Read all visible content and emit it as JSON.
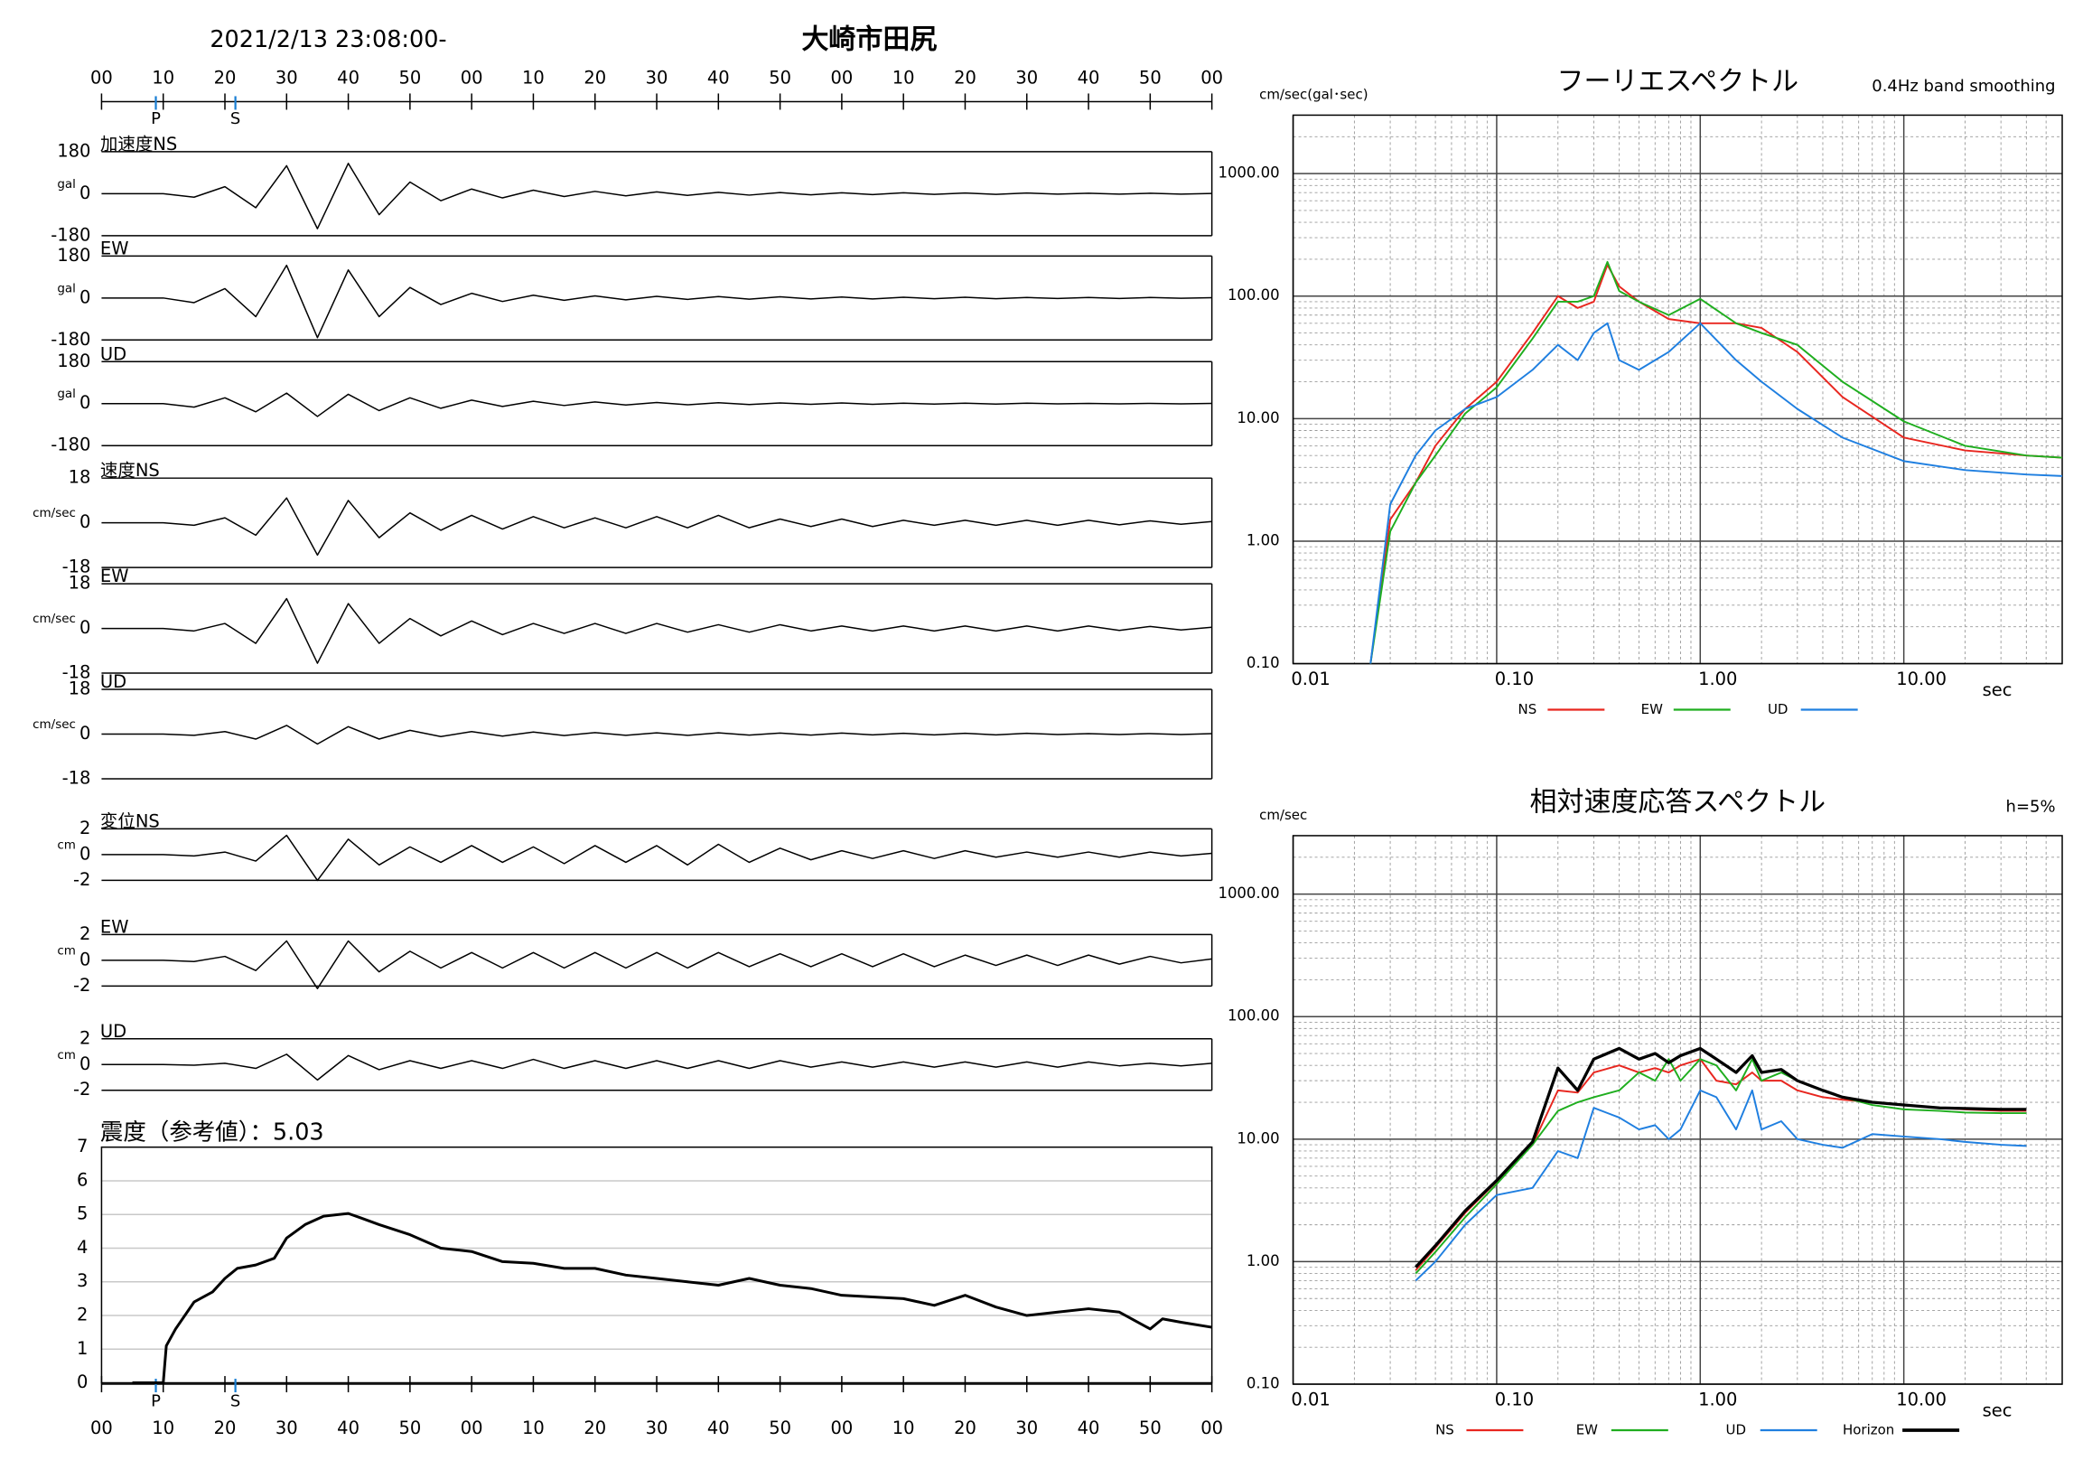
{
  "chart_data": [
    {
      "type": "line",
      "title": "大崎市田尻",
      "subtitle": "2021/2/13 23:08:00-",
      "xlim": [
        0,
        180
      ],
      "xticks": [
        {
          "value": 0,
          "label": "00"
        },
        {
          "value": 10,
          "label": "10"
        },
        {
          "value": 20,
          "label": "20"
        },
        {
          "value": 30,
          "label": "30"
        },
        {
          "value": 40,
          "label": "40"
        },
        {
          "value": 50,
          "label": "50"
        },
        {
          "value": 60,
          "label": "00"
        },
        {
          "value": 70,
          "label": "10"
        },
        {
          "value": 80,
          "label": "20"
        },
        {
          "value": 90,
          "label": "30"
        },
        {
          "value": 100,
          "label": "40"
        },
        {
          "value": 110,
          "label": "50"
        },
        {
          "value": 120,
          "label": "00"
        },
        {
          "value": 130,
          "label": "10"
        },
        {
          "value": 140,
          "label": "20"
        },
        {
          "value": 150,
          "label": "30"
        },
        {
          "value": 160,
          "label": "40"
        },
        {
          "value": 170,
          "label": "50"
        },
        {
          "value": 180,
          "label": "00"
        }
      ],
      "markers": [
        {
          "label": "P",
          "x": 8.8
        },
        {
          "label": "S",
          "x": 21.7
        }
      ],
      "x": [
        0,
        5,
        10,
        15,
        20,
        25,
        30,
        35,
        40,
        45,
        50,
        55,
        60,
        65,
        70,
        75,
        80,
        85,
        90,
        95,
        100,
        105,
        110,
        115,
        120,
        125,
        130,
        135,
        140,
        145,
        150,
        155,
        160,
        165,
        170,
        175,
        180
      ],
      "panels": [
        {
          "label": "加速度NS",
          "unit": "gal",
          "ylim": [
            -180,
            180
          ],
          "yticks": [
            180,
            0,
            -180
          ],
          "color": "#000000",
          "values": [
            0,
            0,
            0,
            -15,
            30,
            -60,
            120,
            -150,
            130,
            -90,
            50,
            -30,
            20,
            -18,
            15,
            -12,
            10,
            -9,
            8,
            -7,
            6,
            -6,
            5,
            -5,
            4,
            -4,
            4,
            -3,
            3,
            -3,
            3,
            -2,
            2,
            -2,
            2,
            -2,
            1
          ]
        },
        {
          "label": "EW",
          "unit": "gal",
          "ylim": [
            -180,
            180
          ],
          "yticks": [
            180,
            0,
            -180
          ],
          "color": "#000000",
          "values": [
            0,
            0,
            0,
            -20,
            40,
            -80,
            140,
            -170,
            120,
            -80,
            45,
            -28,
            20,
            -15,
            12,
            -10,
            9,
            -8,
            7,
            -6,
            6,
            -5,
            5,
            -4,
            4,
            -4,
            3,
            -3,
            3,
            -3,
            2,
            -2,
            2,
            -2,
            2,
            -1,
            1
          ]
        },
        {
          "label": "UD",
          "unit": "gal",
          "ylim": [
            -180,
            180
          ],
          "yticks": [
            180,
            0,
            -180
          ],
          "color": "#000000",
          "values": [
            0,
            0,
            0,
            -15,
            25,
            -35,
            45,
            -55,
            40,
            -30,
            25,
            -20,
            15,
            -12,
            10,
            -8,
            7,
            -6,
            5,
            -5,
            4,
            -4,
            3,
            -3,
            3,
            -3,
            2,
            -2,
            2,
            -2,
            2,
            -1,
            1,
            -1,
            1,
            -1,
            1
          ]
        },
        {
          "label": "速度NS",
          "unit": "cm/sec",
          "ylim": [
            -18,
            18
          ],
          "yticks": [
            18,
            0,
            -18
          ],
          "color": "#000000",
          "values": [
            0,
            0,
            0,
            -1,
            2,
            -5,
            10,
            -13,
            9,
            -6,
            4,
            -3,
            3,
            -2.5,
            2.5,
            -2,
            2,
            -2,
            2.5,
            -2,
            3,
            -2,
            1.5,
            -1.5,
            1.5,
            -1.5,
            1,
            -1,
            1,
            -1,
            1,
            -1,
            1,
            -0.8,
            0.8,
            -0.6,
            0.5
          ]
        },
        {
          "label": "EW",
          "unit": "cm/sec",
          "ylim": [
            -18,
            18
          ],
          "yticks": [
            18,
            0,
            -18
          ],
          "color": "#000000",
          "values": [
            0,
            0,
            0,
            -1,
            2,
            -6,
            12,
            -14,
            10,
            -6,
            4,
            -3,
            3,
            -2.5,
            2,
            -2,
            2,
            -2,
            2,
            -1.5,
            1.5,
            -1.5,
            1.5,
            -1,
            1,
            -1,
            1,
            -1,
            1,
            -1,
            1,
            -1,
            1,
            -0.8,
            0.8,
            -0.6,
            0.5
          ]
        },
        {
          "label": "UD",
          "unit": "cm/sec",
          "ylim": [
            -18,
            18
          ],
          "yticks": [
            18,
            0,
            -18
          ],
          "color": "#000000",
          "values": [
            0,
            0,
            0,
            -0.5,
            1,
            -2,
            3.5,
            -4,
            3,
            -2,
            1.5,
            -1,
            1,
            -0.8,
            0.8,
            -0.6,
            0.6,
            -0.5,
            0.5,
            -0.5,
            0.5,
            -0.4,
            0.4,
            -0.4,
            0.4,
            -0.3,
            0.3,
            -0.3,
            0.3,
            -0.3,
            0.3,
            -0.2,
            0.2,
            -0.2,
            0.2,
            -0.2,
            0.2
          ]
        },
        {
          "label": "変位NS",
          "unit": "cm",
          "ylim": [
            -2,
            2
          ],
          "yticks": [
            2,
            0,
            -2
          ],
          "color": "#000000",
          "values": [
            0,
            0,
            0,
            -0.1,
            0.2,
            -0.5,
            1.5,
            -2,
            1.2,
            -0.8,
            0.6,
            -0.6,
            0.7,
            -0.6,
            0.6,
            -0.7,
            0.7,
            -0.6,
            0.7,
            -0.8,
            0.8,
            -0.6,
            0.5,
            -0.4,
            0.3,
            -0.3,
            0.3,
            -0.3,
            0.3,
            -0.2,
            0.2,
            -0.2,
            0.2,
            -0.2,
            0.2,
            -0.1,
            0.1
          ]
        },
        {
          "label": "EW",
          "unit": "cm",
          "ylim": [
            -2,
            2
          ],
          "yticks": [
            2,
            0,
            -2
          ],
          "color": "#000000",
          "values": [
            0,
            0,
            0,
            -0.1,
            0.3,
            -0.8,
            1.5,
            -2.2,
            1.5,
            -0.9,
            0.7,
            -0.6,
            0.6,
            -0.6,
            0.6,
            -0.6,
            0.6,
            -0.6,
            0.6,
            -0.6,
            0.6,
            -0.5,
            0.5,
            -0.5,
            0.5,
            -0.5,
            0.5,
            -0.5,
            0.4,
            -0.4,
            0.4,
            -0.4,
            0.4,
            -0.3,
            0.3,
            -0.2,
            0.1
          ]
        },
        {
          "label": "UD",
          "unit": "cm",
          "ylim": [
            -2,
            2
          ],
          "yticks": [
            2,
            0,
            -2
          ],
          "color": "#000000",
          "values": [
            0,
            0,
            0,
            -0.05,
            0.1,
            -0.3,
            0.8,
            -1.2,
            0.7,
            -0.4,
            0.3,
            -0.3,
            0.3,
            -0.3,
            0.4,
            -0.3,
            0.3,
            -0.3,
            0.3,
            -0.3,
            0.3,
            -0.3,
            0.3,
            -0.2,
            0.2,
            -0.2,
            0.2,
            -0.2,
            0.2,
            -0.2,
            0.2,
            -0.2,
            0.2,
            -0.1,
            0.1,
            -0.1,
            0.1
          ]
        }
      ]
    },
    {
      "type": "line",
      "title": "震度（参考値）：5.03",
      "xlim": [
        0,
        180
      ],
      "xticks": [
        {
          "value": 0,
          "label": "00"
        },
        {
          "value": 10,
          "label": "10"
        },
        {
          "value": 20,
          "label": "20"
        },
        {
          "value": 30,
          "label": "30"
        },
        {
          "value": 40,
          "label": "40"
        },
        {
          "value": 50,
          "label": "50"
        },
        {
          "value": 60,
          "label": "00"
        },
        {
          "value": 70,
          "label": "10"
        },
        {
          "value": 80,
          "label": "20"
        },
        {
          "value": 90,
          "label": "30"
        },
        {
          "value": 100,
          "label": "40"
        },
        {
          "value": 110,
          "label": "50"
        },
        {
          "value": 120,
          "label": "00"
        },
        {
          "value": 130,
          "label": "10"
        },
        {
          "value": 140,
          "label": "20"
        },
        {
          "value": 150,
          "label": "30"
        },
        {
          "value": 160,
          "label": "40"
        },
        {
          "value": 170,
          "label": "50"
        },
        {
          "value": 180,
          "label": "00"
        }
      ],
      "markers": [
        {
          "label": "P",
          "x": 8.8
        },
        {
          "label": "S",
          "x": 21.7
        }
      ],
      "ylim": [
        0,
        7
      ],
      "yticks": [
        0,
        1,
        2,
        3,
        4,
        5,
        6,
        7
      ],
      "grid": true,
      "color": "#000000",
      "x": [
        5,
        10,
        10.5,
        12,
        15,
        18,
        20,
        22,
        25,
        28,
        30,
        33,
        36,
        40,
        42,
        45,
        50,
        55,
        60,
        65,
        70,
        75,
        80,
        85,
        90,
        95,
        100,
        105,
        110,
        115,
        120,
        125,
        130,
        135,
        140,
        145,
        150,
        155,
        160,
        165,
        170,
        172,
        175,
        180
      ],
      "values": [
        0,
        0,
        1.1,
        1.6,
        2.4,
        2.7,
        3.1,
        3.4,
        3.5,
        3.7,
        4.3,
        4.7,
        4.95,
        5.03,
        4.9,
        4.7,
        4.4,
        4.0,
        3.9,
        3.6,
        3.55,
        3.4,
        3.4,
        3.2,
        3.1,
        3.0,
        2.9,
        3.1,
        2.9,
        2.8,
        2.6,
        2.55,
        2.5,
        2.3,
        2.6,
        2.25,
        2.0,
        2.1,
        2.2,
        2.1,
        1.6,
        1.9,
        1.8,
        1.65
      ]
    },
    {
      "type": "line",
      "title": "フーリエスペクトル",
      "note": "0.4Hz band smoothing",
      "ylabel": "cm/sec(gal･sec)",
      "xlabel": "sec",
      "xscale": "log",
      "yscale": "log",
      "xlim": [
        0.01,
        60
      ],
      "ylim": [
        0.1,
        3000
      ],
      "xticks": [
        0.01,
        {
          "value": 0.1,
          "label": "0.10"
        },
        {
          "value": 1,
          "label": "1.00"
        },
        {
          "value": 10,
          "label": "10.00"
        }
      ],
      "yticks": [
        {
          "value": 0.1,
          "label": "0.10"
        },
        {
          "value": 1,
          "label": "1.00"
        },
        {
          "value": 10,
          "label": "10.00"
        },
        {
          "value": 100,
          "label": "100.00"
        },
        {
          "value": 1000,
          "label": "1000.00"
        }
      ],
      "grid": true,
      "minor_grid": true,
      "x": [
        0.024,
        0.03,
        0.04,
        0.05,
        0.07,
        0.1,
        0.15,
        0.2,
        0.25,
        0.3,
        0.35,
        0.4,
        0.5,
        0.7,
        1.0,
        1.5,
        2,
        3,
        5,
        10,
        20,
        40,
        60
      ],
      "series": [
        {
          "name": "NS",
          "color": "#e8261f",
          "values": [
            0.1,
            1.5,
            3,
            6,
            12,
            20,
            50,
            100,
            80,
            90,
            180,
            120,
            90,
            65,
            60,
            60,
            55,
            35,
            15,
            7,
            5.5,
            5,
            4.8
          ]
        },
        {
          "name": "EW",
          "color": "#1fae1f",
          "values": [
            0.1,
            1.2,
            3,
            5,
            11,
            18,
            45,
            90,
            90,
            100,
            190,
            110,
            90,
            70,
            95,
            60,
            50,
            40,
            20,
            9.5,
            6,
            5,
            4.8
          ]
        },
        {
          "name": "UD",
          "color": "#1f7fe0",
          "values": [
            0.1,
            2,
            5,
            8,
            12,
            15,
            25,
            40,
            30,
            50,
            60,
            30,
            25,
            35,
            60,
            30,
            20,
            12,
            7,
            4.5,
            3.8,
            3.5,
            3.4
          ]
        }
      ]
    },
    {
      "type": "line",
      "title": "相対速度応答スペクトル",
      "note": "h=5%",
      "ylabel": "cm/sec",
      "xlabel": "sec",
      "xscale": "log",
      "yscale": "log",
      "xlim": [
        0.01,
        60
      ],
      "ylim": [
        0.1,
        3000
      ],
      "xticks": [
        0.01,
        {
          "value": 0.1,
          "label": "0.10"
        },
        {
          "value": 1,
          "label": "1.00"
        },
        {
          "value": 10,
          "label": "10.00"
        }
      ],
      "yticks": [
        {
          "value": 0.1,
          "label": "0.10"
        },
        {
          "value": 1,
          "label": "1.00"
        },
        {
          "value": 10,
          "label": "10.00"
        },
        {
          "value": 100,
          "label": "100.00"
        },
        {
          "value": 1000,
          "label": "1000.00"
        }
      ],
      "grid": true,
      "minor_grid": true,
      "x": [
        0.04,
        0.05,
        0.07,
        0.1,
        0.15,
        0.2,
        0.25,
        0.3,
        0.4,
        0.5,
        0.6,
        0.7,
        0.8,
        1.0,
        1.2,
        1.5,
        1.8,
        2,
        2.5,
        3,
        4,
        5,
        7,
        10,
        15,
        20,
        30,
        40
      ],
      "series": [
        {
          "name": "NS",
          "color": "#e8261f",
          "values": [
            0.85,
            1.3,
            2.5,
            4.5,
            9,
            25,
            24,
            35,
            40,
            35,
            38,
            35,
            40,
            45,
            30,
            28,
            35,
            30,
            30,
            25,
            22,
            21,
            20,
            19,
            18,
            17.5,
            17,
            17
          ]
        },
        {
          "name": "EW",
          "color": "#1fae1f",
          "values": [
            0.8,
            1.2,
            2.3,
            4.3,
            9,
            17,
            20,
            22,
            25,
            35,
            30,
            45,
            30,
            45,
            40,
            25,
            45,
            30,
            35,
            30,
            25,
            22,
            19,
            17.5,
            17,
            16.5,
            16.3,
            16.3
          ]
        },
        {
          "name": "UD",
          "color": "#1f7fe0",
          "values": [
            0.7,
            1.0,
            2.0,
            3.5,
            4.0,
            8,
            7,
            18,
            15,
            12,
            13,
            10,
            12,
            25,
            22,
            12,
            25,
            12,
            14,
            10,
            9,
            8.5,
            11,
            10.5,
            10,
            9.5,
            9,
            8.8
          ]
        },
        {
          "name": "Horizon",
          "color": "#000000",
          "values": [
            0.9,
            1.35,
            2.6,
            4.6,
            9.5,
            38,
            25,
            45,
            55,
            45,
            50,
            42,
            48,
            55,
            45,
            35,
            48,
            35,
            37,
            30,
            25,
            22,
            20,
            19,
            18,
            17.8,
            17.5,
            17.5
          ]
        }
      ]
    }
  ]
}
